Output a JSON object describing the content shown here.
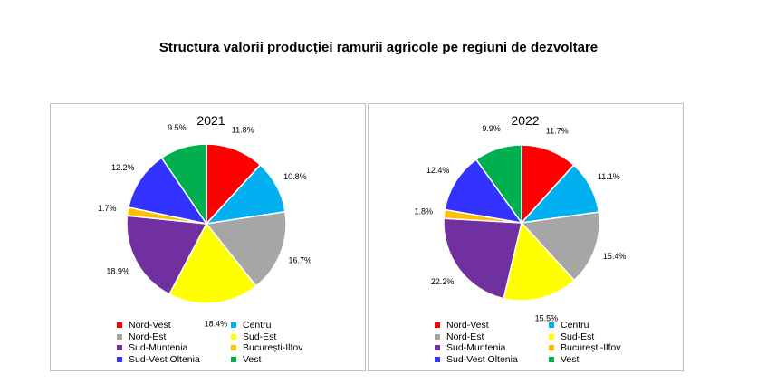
{
  "title": "Structura valorii producției ramurii agricole pe regiuni de dezvoltare",
  "chart_data": [
    {
      "type": "pie",
      "title": "2021",
      "categories": [
        "Nord-Vest",
        "Centru",
        "Nord-Est",
        "Sud-Est",
        "Sud-Muntenia",
        "București-Ilfov",
        "Sud-Vest Oltenia",
        "Vest"
      ],
      "values": [
        11.8,
        10.8,
        16.7,
        18.4,
        18.9,
        1.7,
        12.2,
        9.5
      ],
      "labels": [
        "11.8%",
        "10.8%",
        "16.7%",
        "18.4%",
        "18.9%",
        "1.7%",
        "12.2%",
        "9.5%"
      ],
      "colors": [
        "#ff0000",
        "#00b0f0",
        "#a6a6a6",
        "#ffff00",
        "#7030a0",
        "#ffc000",
        "#3333ff",
        "#00b050"
      ],
      "legend": "bottom"
    },
    {
      "type": "pie",
      "title": "2022",
      "categories": [
        "Nord-Vest",
        "Centru",
        "Nord-Est",
        "Sud-Est",
        "Sud-Muntenia",
        "București-Ilfov",
        "Sud-Vest Oltenia",
        "Vest"
      ],
      "values": [
        11.7,
        11.1,
        15.4,
        15.5,
        22.2,
        1.8,
        12.4,
        9.9
      ],
      "labels": [
        "11.7%",
        "11.1%",
        "15.4%",
        "15.5%",
        "22.2%",
        "1.8%",
        "12.4%",
        "9.9%"
      ],
      "colors": [
        "#ff0000",
        "#00b0f0",
        "#a6a6a6",
        "#ffff00",
        "#7030a0",
        "#ffc000",
        "#3333ff",
        "#00b050"
      ],
      "legend": "bottom"
    }
  ]
}
